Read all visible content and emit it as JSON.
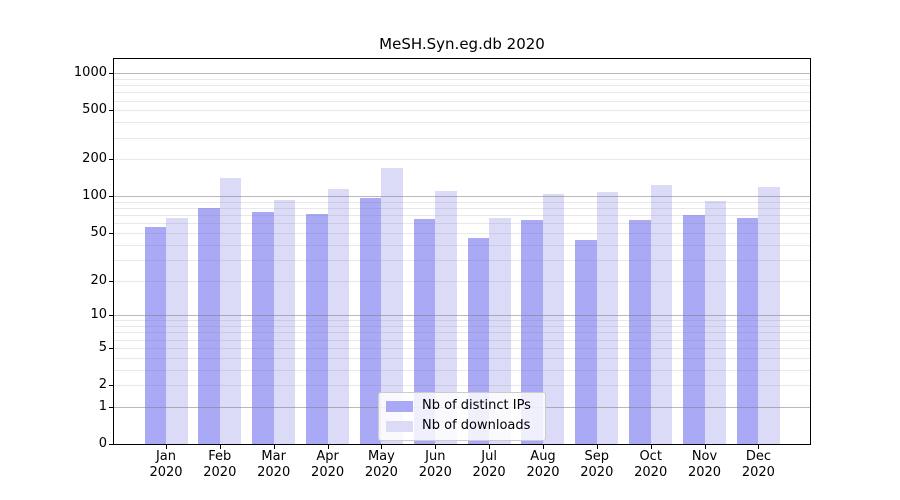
{
  "chart_data": {
    "type": "bar",
    "title": "MeSH.Syn.eg.db 2020",
    "x_months": [
      "Jan",
      "Feb",
      "Mar",
      "Apr",
      "May",
      "Jun",
      "Jul",
      "Aug",
      "Sep",
      "Oct",
      "Nov",
      "Dec"
    ],
    "x_year": "2020",
    "series": [
      {
        "name": "Nb of distinct IPs",
        "color": "#a9a9f5",
        "values": [
          56,
          80,
          75,
          72,
          97,
          65,
          45,
          64,
          44,
          64,
          70,
          67
        ]
      },
      {
        "name": "Nb of downloads",
        "color": "#dbdbf8",
        "values": [
          67,
          142,
          93,
          114,
          171,
          111,
          67,
          105,
          109,
          123,
          92,
          119
        ]
      }
    ],
    "yscale": "log1p",
    "yticks": [
      0,
      1,
      2,
      5,
      10,
      20,
      50,
      100,
      200,
      500,
      1000
    ],
    "ylim": [
      0,
      1300
    ],
    "grid": {
      "orientation": "horizontal",
      "major_at": [
        1,
        10,
        100,
        1000
      ],
      "major_color": "rgba(128,128,128,0.55)",
      "minor_color": "rgba(128,128,128,0.18)"
    },
    "legend_position": "lower center inside"
  }
}
